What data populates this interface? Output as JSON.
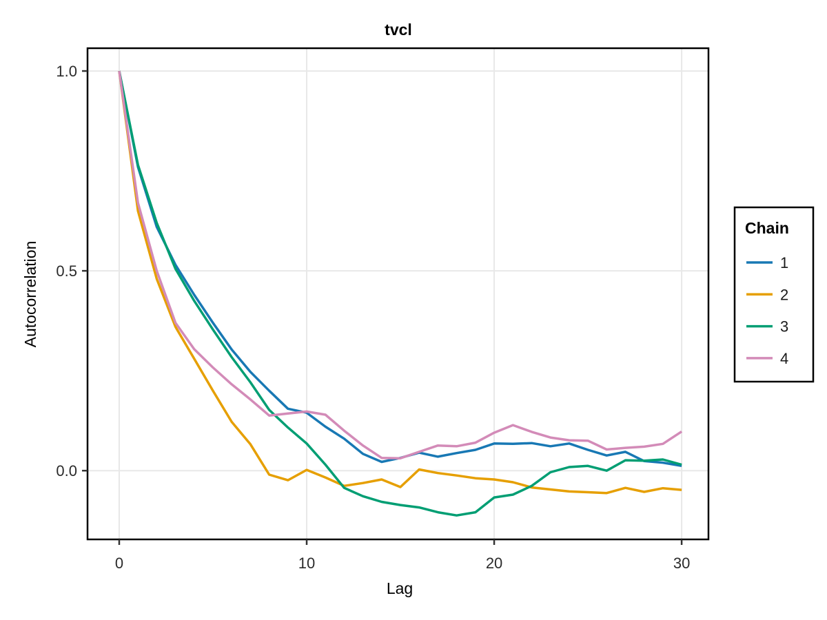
{
  "figure": {
    "background": "#ffffff",
    "plot_border_color": "#000000",
    "gridline_color": "#e8e8e8",
    "tick_color": "#333333"
  },
  "chart_data": {
    "type": "line",
    "title": "tvcl",
    "xlabel": "Lag",
    "ylabel": "Autocorrelation",
    "xlim": [
      -1.69,
      31.43
    ],
    "ylim": [
      -0.172,
      1.057
    ],
    "x_ticks": [
      0,
      10,
      20,
      30
    ],
    "x_tick_labels": [
      "0",
      "10",
      "20",
      "30"
    ],
    "y_ticks": [
      0.0,
      0.5,
      1.0
    ],
    "y_tick_labels": [
      "0.0",
      "0.5",
      "1.0"
    ],
    "grid": true,
    "legend_title": "Chain",
    "legend_position": "right",
    "x": [
      0,
      1,
      2,
      3,
      4,
      5,
      6,
      7,
      8,
      9,
      10,
      11,
      12,
      13,
      14,
      15,
      16,
      17,
      18,
      19,
      20,
      21,
      22,
      23,
      24,
      25,
      26,
      27,
      28,
      29,
      30
    ],
    "series": [
      {
        "name": "1",
        "color": "#1878B4",
        "values": [
          1.0,
          0.76,
          0.61,
          0.515,
          0.44,
          0.37,
          0.303,
          0.247,
          0.2,
          0.155,
          0.145,
          0.11,
          0.08,
          0.042,
          0.022,
          0.032,
          0.045,
          0.035,
          0.044,
          0.052,
          0.068,
          0.067,
          0.069,
          0.061,
          0.068,
          0.052,
          0.038,
          0.047,
          0.024,
          0.02,
          0.012
        ]
      },
      {
        "name": "2",
        "color": "#E69F00",
        "values": [
          1.0,
          0.65,
          0.48,
          0.36,
          0.28,
          0.2,
          0.122,
          0.066,
          -0.01,
          -0.024,
          0.002,
          -0.017,
          -0.038,
          -0.031,
          -0.022,
          -0.041,
          0.003,
          -0.006,
          -0.012,
          -0.019,
          -0.022,
          -0.029,
          -0.042,
          -0.047,
          -0.052,
          -0.054,
          -0.056,
          -0.043,
          -0.053,
          -0.044,
          -0.048
        ]
      },
      {
        "name": "3",
        "color": "#009E73",
        "values": [
          1.0,
          0.765,
          0.62,
          0.505,
          0.425,
          0.353,
          0.284,
          0.221,
          0.152,
          0.108,
          0.068,
          0.015,
          -0.043,
          -0.064,
          -0.078,
          -0.086,
          -0.092,
          -0.104,
          -0.112,
          -0.104,
          -0.067,
          -0.06,
          -0.038,
          -0.004,
          0.009,
          0.012,
          0.0,
          0.026,
          0.025,
          0.028,
          0.015
        ]
      },
      {
        "name": "4",
        "color": "#D38BB8",
        "values": [
          1.0,
          0.67,
          0.5,
          0.37,
          0.304,
          0.258,
          0.216,
          0.178,
          0.138,
          0.143,
          0.148,
          0.14,
          0.1,
          0.063,
          0.032,
          0.031,
          0.047,
          0.063,
          0.061,
          0.07,
          0.095,
          0.114,
          0.097,
          0.083,
          0.076,
          0.075,
          0.053,
          0.057,
          0.06,
          0.067,
          0.098
        ]
      }
    ]
  }
}
